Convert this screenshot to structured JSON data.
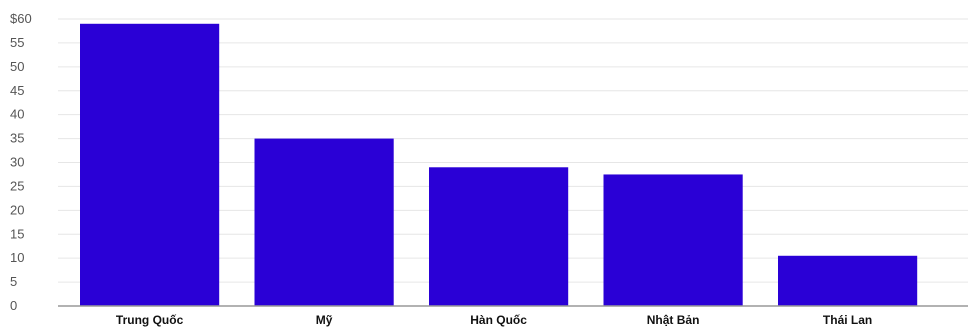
{
  "chart_data": {
    "type": "bar",
    "categories": [
      "Trung Quốc",
      "Mỹ",
      "Hàn Quốc",
      "Nhật Bản",
      "Thái Lan"
    ],
    "values": [
      59,
      35,
      29,
      27.5,
      10.5
    ],
    "ylim": [
      0,
      60
    ],
    "yticks": [
      0,
      5,
      10,
      15,
      20,
      25,
      30,
      35,
      40,
      45,
      50,
      55,
      60
    ],
    "ytick_labels": [
      "0",
      "5",
      "10",
      "15",
      "20",
      "25",
      "30",
      "35",
      "40",
      "45",
      "50",
      "55",
      "$60"
    ],
    "title": "",
    "xlabel": "",
    "ylabel": "",
    "grid": true,
    "bar_color": "#2a00d6"
  }
}
